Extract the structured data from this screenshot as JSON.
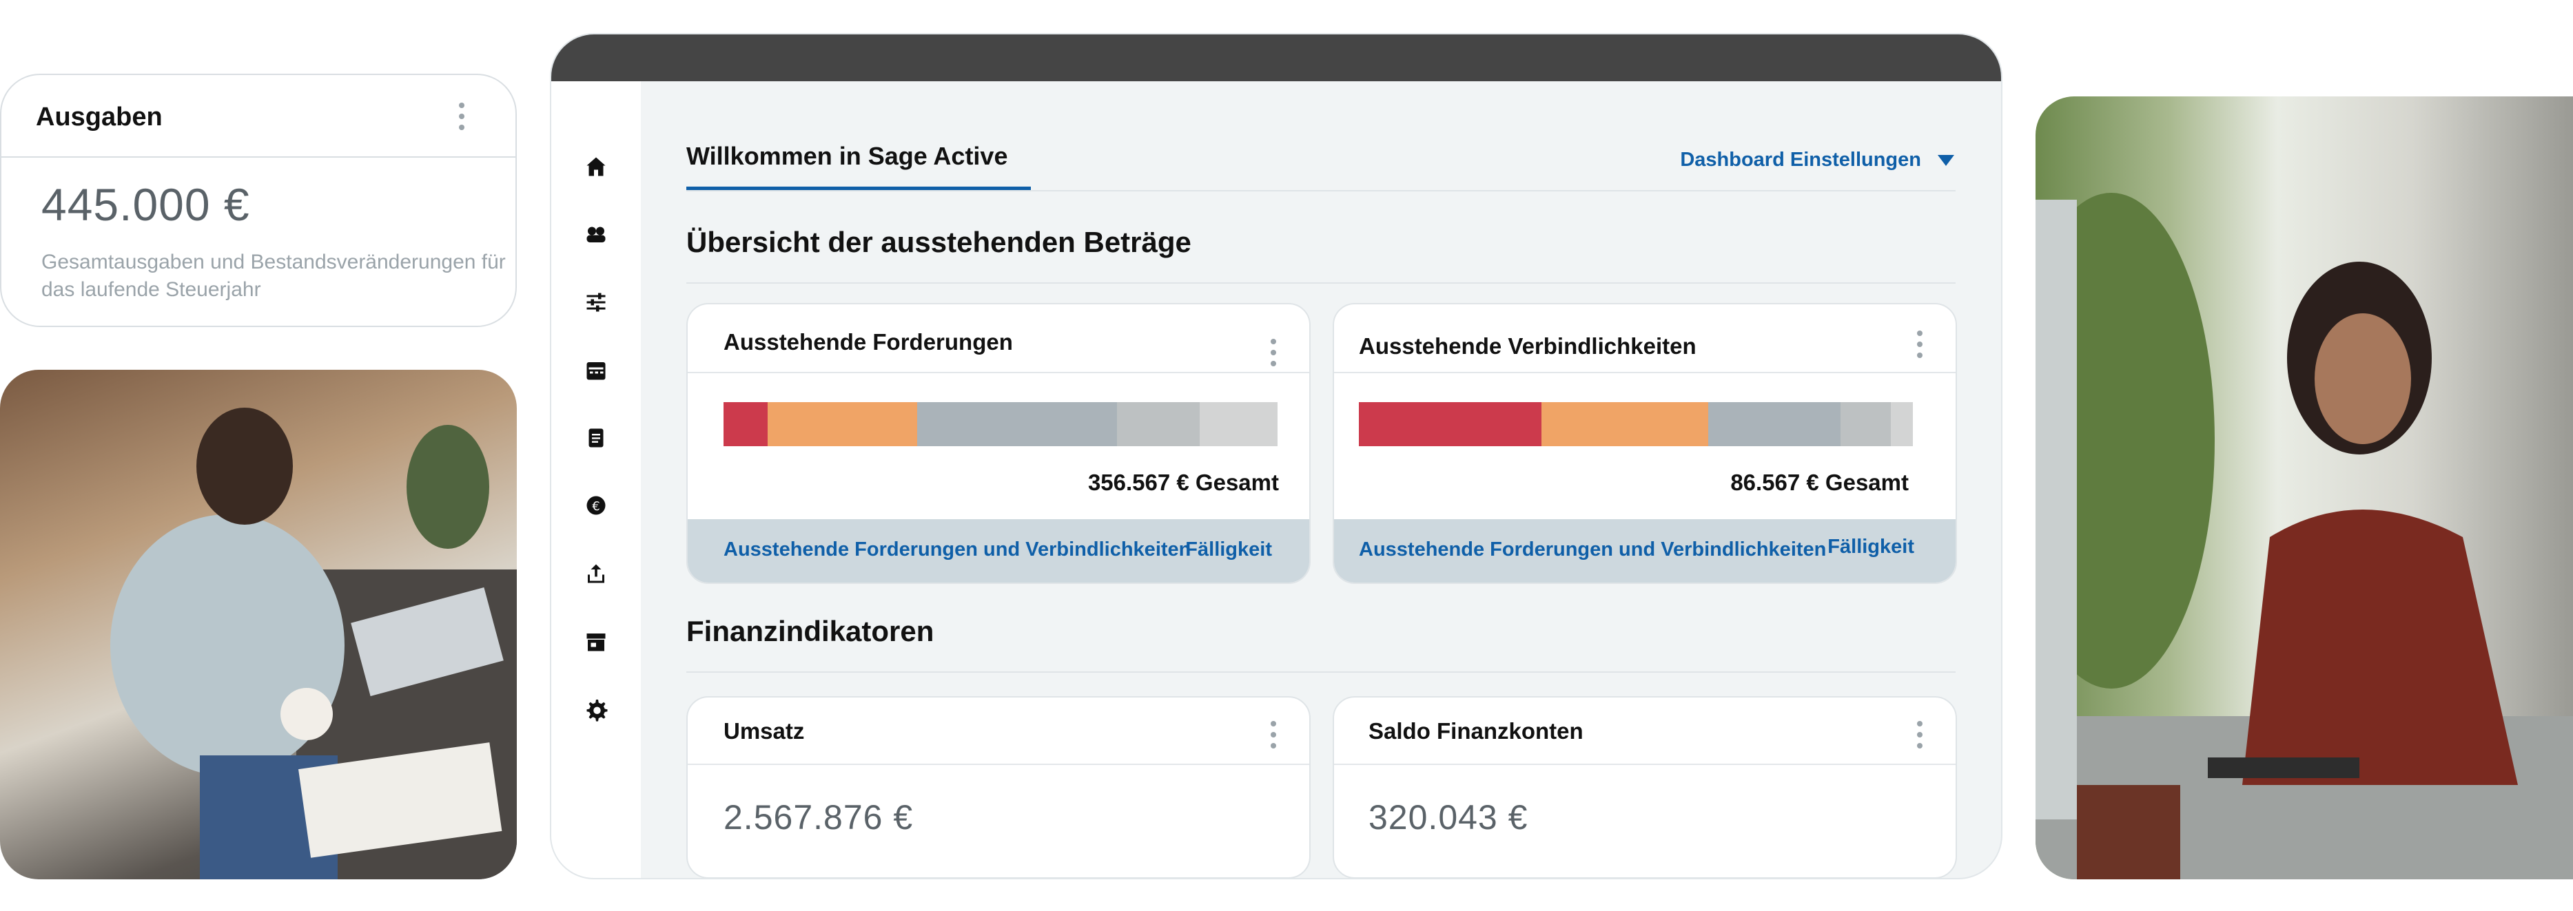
{
  "ausgaben_card": {
    "title": "Ausgaben",
    "amount": "445.000 €",
    "description": "Gesamtausgaben und Bestandsveränderungen für das laufende Steuerjahr"
  },
  "nav": {
    "items": [
      {
        "icon": "home-icon"
      },
      {
        "icon": "contacts-icon"
      },
      {
        "icon": "sliders-icon"
      },
      {
        "icon": "calendar-icon"
      },
      {
        "icon": "document-icon"
      },
      {
        "icon": "euro-icon"
      },
      {
        "icon": "upload-icon"
      },
      {
        "icon": "store-icon"
      },
      {
        "icon": "gear-icon"
      }
    ]
  },
  "header": {
    "tab": "Willkommen in Sage Active",
    "settings": "Dashboard Einstellungen"
  },
  "outstanding": {
    "title": "Übersicht der ausstehenden Beträge",
    "receivables": {
      "title": "Ausstehende Forderungen",
      "total": "356.567 € Gesamt",
      "link": "Ausstehende Forderungen und Verbindlichkeiten",
      "due": "Fälligkeit",
      "segments": [
        0.08,
        0.27,
        0.36,
        0.15,
        0.14
      ]
    },
    "payables": {
      "title": "Ausstehende Verbindlichkeiten",
      "total": "86.567 € Gesamt",
      "link": "Ausstehende Forderungen und Verbindlichkeiten",
      "due": "Fälligkeit",
      "segments": [
        0.33,
        0.3,
        0.24,
        0.09,
        0.04
      ]
    }
  },
  "indicators": {
    "title": "Finanzindikatoren",
    "revenue": {
      "title": "Umsatz",
      "value": "2.567.876 €"
    },
    "balance": {
      "title": "Saldo Finanzkonten",
      "value": "320.043 €"
    }
  },
  "colors": {
    "segments": [
      "#cc3a4c",
      "#f0a466",
      "#aab3b9",
      "#bdc1c2",
      "#d3d4d4"
    ],
    "link": "#0f5fa8",
    "titlebar": "#454545"
  }
}
